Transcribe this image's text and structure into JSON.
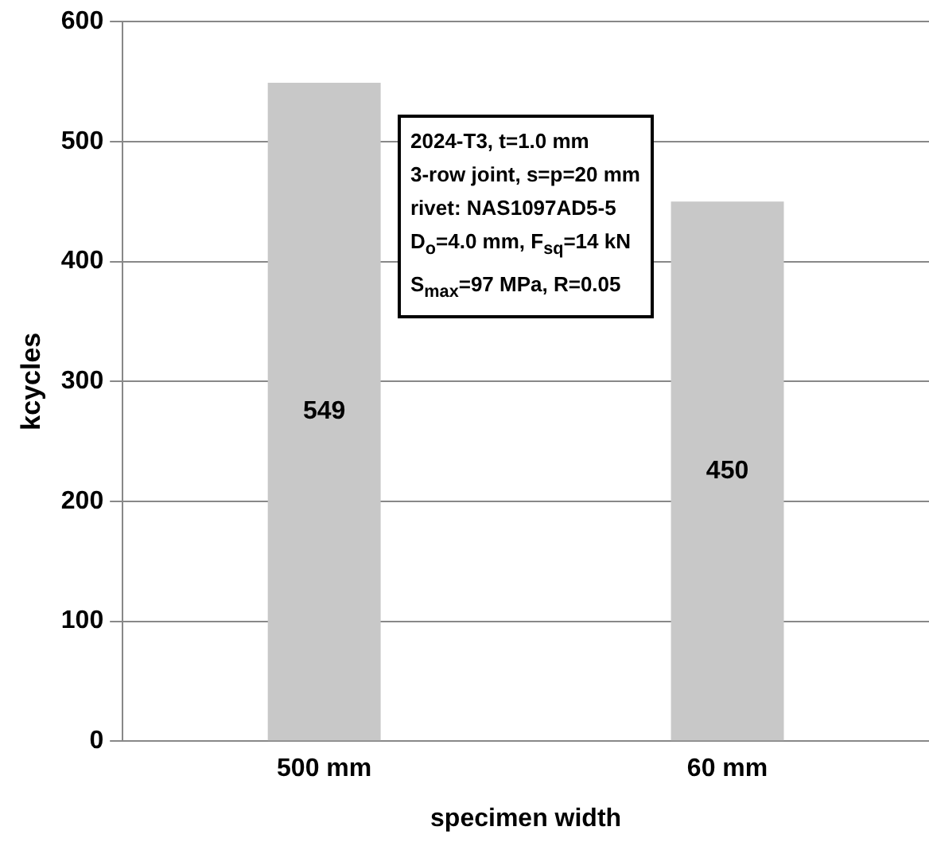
{
  "chart_data": {
    "type": "bar",
    "xlabel": "specimen width",
    "ylabel": "kcycles",
    "categories": [
      "500 mm",
      "60 mm"
    ],
    "values": [
      549,
      450
    ],
    "color": "#c8c8c8",
    "ylim": [
      0,
      600
    ],
    "yticks": [
      0,
      100,
      200,
      300,
      400,
      500,
      600
    ],
    "grid": "y",
    "data_labels": true,
    "annotations": [
      "2024-T3, t=1.0 mm",
      "3-row joint, s=p=20 mm",
      "rivet: NAS1097AD5-5",
      "D$_{o}$=4.0 mm, F$_{sq}$=14 kN",
      "S$_{max}$=97 MPa, R=0.05"
    ]
  }
}
